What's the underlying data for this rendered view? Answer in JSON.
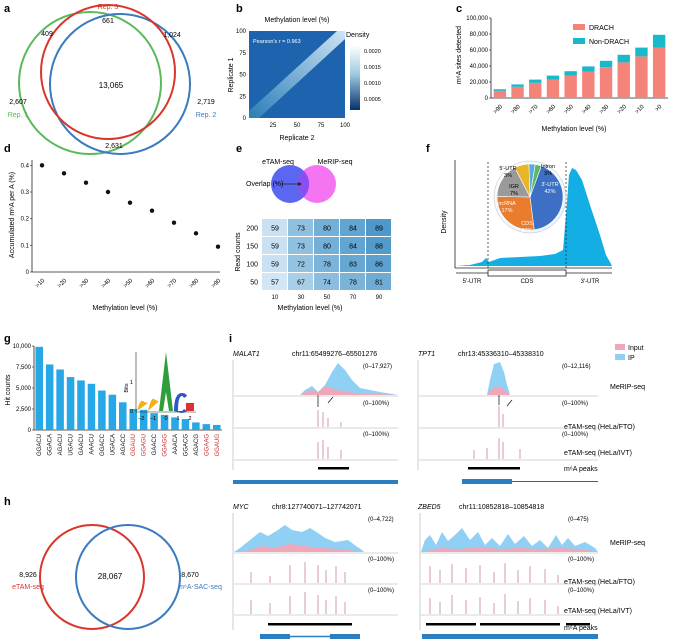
{
  "panels": {
    "a": {
      "letter": "a",
      "labels": {
        "rep1": "Rep. 1",
        "rep2": "Rep. 2",
        "rep3": "Rep. 3"
      },
      "counts": {
        "only1": "2,607",
        "only2": "2,719",
        "only3": "661",
        "r1r3": "409",
        "r2r3": "1,024",
        "r1r2": "2,631",
        "all": "13,065"
      },
      "colors": {
        "rep1": "#5cb85c",
        "rep2": "#3a7bbf",
        "rep3": "#d9362b"
      }
    },
    "b": {
      "letter": "b",
      "title": "Methylation level (%)",
      "xlabel": "Replicate 2",
      "ylabel": "Replicate 1",
      "annotation": "Pearson's r = 0.963",
      "xticks": [
        "25",
        "50",
        "75",
        "100"
      ],
      "yticks": [
        "0",
        "25",
        "50",
        "75",
        "100"
      ],
      "colorbar_label": "Density",
      "colorbar_ticks": [
        "0.0020",
        "0.0015",
        "0.0010",
        "0.0005"
      ]
    },
    "c": {
      "letter": "c",
      "ylabel": "m⁶A sites detected",
      "xlabel": "Methylation level (%)",
      "legend": {
        "drach": "DRACH",
        "non_drach": "Non-DRACH"
      },
      "yticks": [
        "0",
        "20,000",
        "40,000",
        "60,000",
        "80,000",
        "100,000"
      ]
    },
    "d": {
      "letter": "d",
      "ylabel": "Accumulated m⁶A per A (%)",
      "xlabel": "Methylation level (%)",
      "yticks": [
        "0",
        "0.1",
        "0.2",
        "0.3",
        "0.4"
      ]
    },
    "e": {
      "letter": "e",
      "venn_left": "eTAM-seq",
      "venn_right": "MeRIP-seq",
      "overlap_label": "Overlap (%)",
      "ylabel": "Read counts",
      "xlabel": "Methylation level (%)",
      "rows": [
        "200",
        "150",
        "100",
        "50"
      ],
      "cols": [
        "10",
        "30",
        "50",
        "70",
        "90"
      ],
      "values": [
        [
          59,
          73,
          80,
          84,
          89
        ],
        [
          59,
          73,
          80,
          84,
          88
        ],
        [
          59,
          72,
          78,
          83,
          86
        ],
        [
          57,
          67,
          74,
          78,
          81
        ]
      ]
    },
    "f": {
      "letter": "f",
      "ylabel": "Density",
      "regions": [
        "5′-UTR",
        "CDS",
        "3′-UTR"
      ],
      "pie_labels": [
        "3′-UTR\n42%",
        "CDS\n27%",
        "ncRNA\n17%",
        "IGR\n7%",
        "5′-UTR\n3%",
        "Intron\n3%"
      ],
      "pie_text": {
        "utr3": "3′-UTR",
        "utr3_pct": "42%",
        "cds": "CDS",
        "cds_pct": "27%",
        "ncrna": "ncRNA",
        "ncrna_pct": "17%",
        "igr": "IGR",
        "igr_pct": "7%",
        "utr5": "5′-UTR",
        "utr5_pct": "3%",
        "intron": "Intron",
        "intron_pct": "3%"
      }
    },
    "g": {
      "letter": "g",
      "ylabel": "Hit counts",
      "yticks": [
        "0",
        "2,500",
        "5,000",
        "7,500",
        "10,000"
      ],
      "logo_ylabel": "Bits",
      "logo_xticks": [
        "−2",
        "−1",
        "0",
        "1",
        "2"
      ],
      "logo_yticks": [
        "0",
        "1"
      ]
    },
    "h": {
      "letter": "h",
      "left_count": "8,926",
      "left_label": "eTAM-seq",
      "mid_count": "28,067",
      "right_count": "8,670",
      "right_label": "m⁶A-SAC-seq"
    },
    "i": {
      "letter": "i",
      "legend": {
        "input": "Input",
        "ip": "IP"
      },
      "track_labels": {
        "merip": "MeRIP-seq",
        "fto": "eTAM-seq (HeLa/FTO)",
        "ivt": "eTAM-seq (HeLa/IVT)",
        "peaks": "m⁶A peaks"
      },
      "loci": [
        {
          "gene": "MALAT1",
          "coords": "chr11:65499276–65501276",
          "range": "(0–17,927)",
          "pct1": "(0–100%)",
          "pct2": "(0–100%)"
        },
        {
          "gene": "TPT1",
          "coords": "chr13:45336310–45338310",
          "range": "(0–12,116)",
          "pct1": "(0–100%)",
          "pct2": "(0–100%)"
        },
        {
          "gene": "MYC",
          "coords": "chr8:127740071–127742071",
          "range": "(0–4,722)",
          "pct1": "(0–100%)",
          "pct2": "(0–100%)"
        },
        {
          "gene": "ZBED5",
          "coords": "chr11:10852818–10854818",
          "range": "(0–475)",
          "pct1": "(0–100%)",
          "pct2": "(0–100%)"
        }
      ]
    }
  },
  "colors": {
    "drach": "#f4847a",
    "non_drach": "#1ab9c9",
    "bar_blue": "#26a7e6",
    "ip_blue": "#90d0f4",
    "input_pink": "#f0a7b8",
    "heat_blue": "#1c5fae",
    "cyan": "#13aee3",
    "motif_red": "#c92a2a"
  },
  "chart_data": [
    {
      "id": "c",
      "type": "bar",
      "stacked": true,
      "categories": [
        ">90",
        ">80",
        ">70",
        ">60",
        ">50",
        ">40",
        ">30",
        ">20",
        ">10",
        ">0"
      ],
      "series": [
        {
          "name": "DRACH",
          "values": [
            9000,
            14000,
            19000,
            23000,
            28000,
            33000,
            38500,
            44500,
            52000,
            63000
          ]
        },
        {
          "name": "Non-DRACH",
          "values": [
            2000,
            3000,
            4000,
            5000,
            5500,
            6500,
            8000,
            9500,
            11000,
            16000
          ]
        }
      ],
      "xlabel": "Methylation level (%)",
      "ylabel": "m⁶A sites detected",
      "ylim": [
        0,
        100000
      ]
    },
    {
      "id": "d",
      "type": "scatter",
      "x": [
        ">10",
        ">20",
        ">30",
        ">40",
        ">50",
        ">60",
        ">70",
        ">80",
        ">90"
      ],
      "y": [
        0.4,
        0.37,
        0.335,
        0.3,
        0.26,
        0.23,
        0.185,
        0.145,
        0.095
      ],
      "xlabel": "Methylation level (%)",
      "ylabel": "Accumulated m⁶A per A (%)",
      "ylim": [
        0,
        0.42
      ]
    },
    {
      "id": "e",
      "type": "heatmap",
      "rows": [
        "200",
        "150",
        "100",
        "50"
      ],
      "cols": [
        "10",
        "30",
        "50",
        "70",
        "90"
      ],
      "values": [
        [
          59,
          73,
          80,
          84,
          89
        ],
        [
          59,
          73,
          80,
          84,
          88
        ],
        [
          59,
          72,
          78,
          83,
          86
        ],
        [
          57,
          67,
          74,
          78,
          81
        ]
      ],
      "xlabel": "Methylation level (%)",
      "ylabel": "Read counts"
    },
    {
      "id": "f",
      "type": "pie",
      "labels": [
        "3′-UTR",
        "CDS",
        "ncRNA",
        "IGR",
        "5′-UTR",
        "Intron"
      ],
      "values": [
        42,
        27,
        17,
        7,
        3,
        3
      ]
    },
    {
      "id": "g",
      "type": "bar",
      "categories": [
        "GGACU",
        "GGACA",
        "AGACU",
        "UGACU",
        "GAACU",
        "AAACU",
        "GGACC",
        "UGACA",
        "AGACC",
        "GGAUU",
        "GGAGU",
        "GAACC",
        "GGAGG",
        "AAACA",
        "GGACG",
        "AGACG",
        "GGAAG",
        "GGAUG"
      ],
      "highlight": [
        false,
        false,
        false,
        false,
        false,
        false,
        false,
        false,
        false,
        true,
        true,
        false,
        true,
        false,
        false,
        false,
        true,
        true
      ],
      "values": [
        9900,
        7800,
        7200,
        6300,
        5900,
        5500,
        4700,
        4200,
        3300,
        2500,
        2400,
        2000,
        1800,
        1500,
        1300,
        900,
        700,
        600
      ],
      "ylabel": "Hit counts",
      "ylim": [
        0,
        10000
      ]
    }
  ]
}
